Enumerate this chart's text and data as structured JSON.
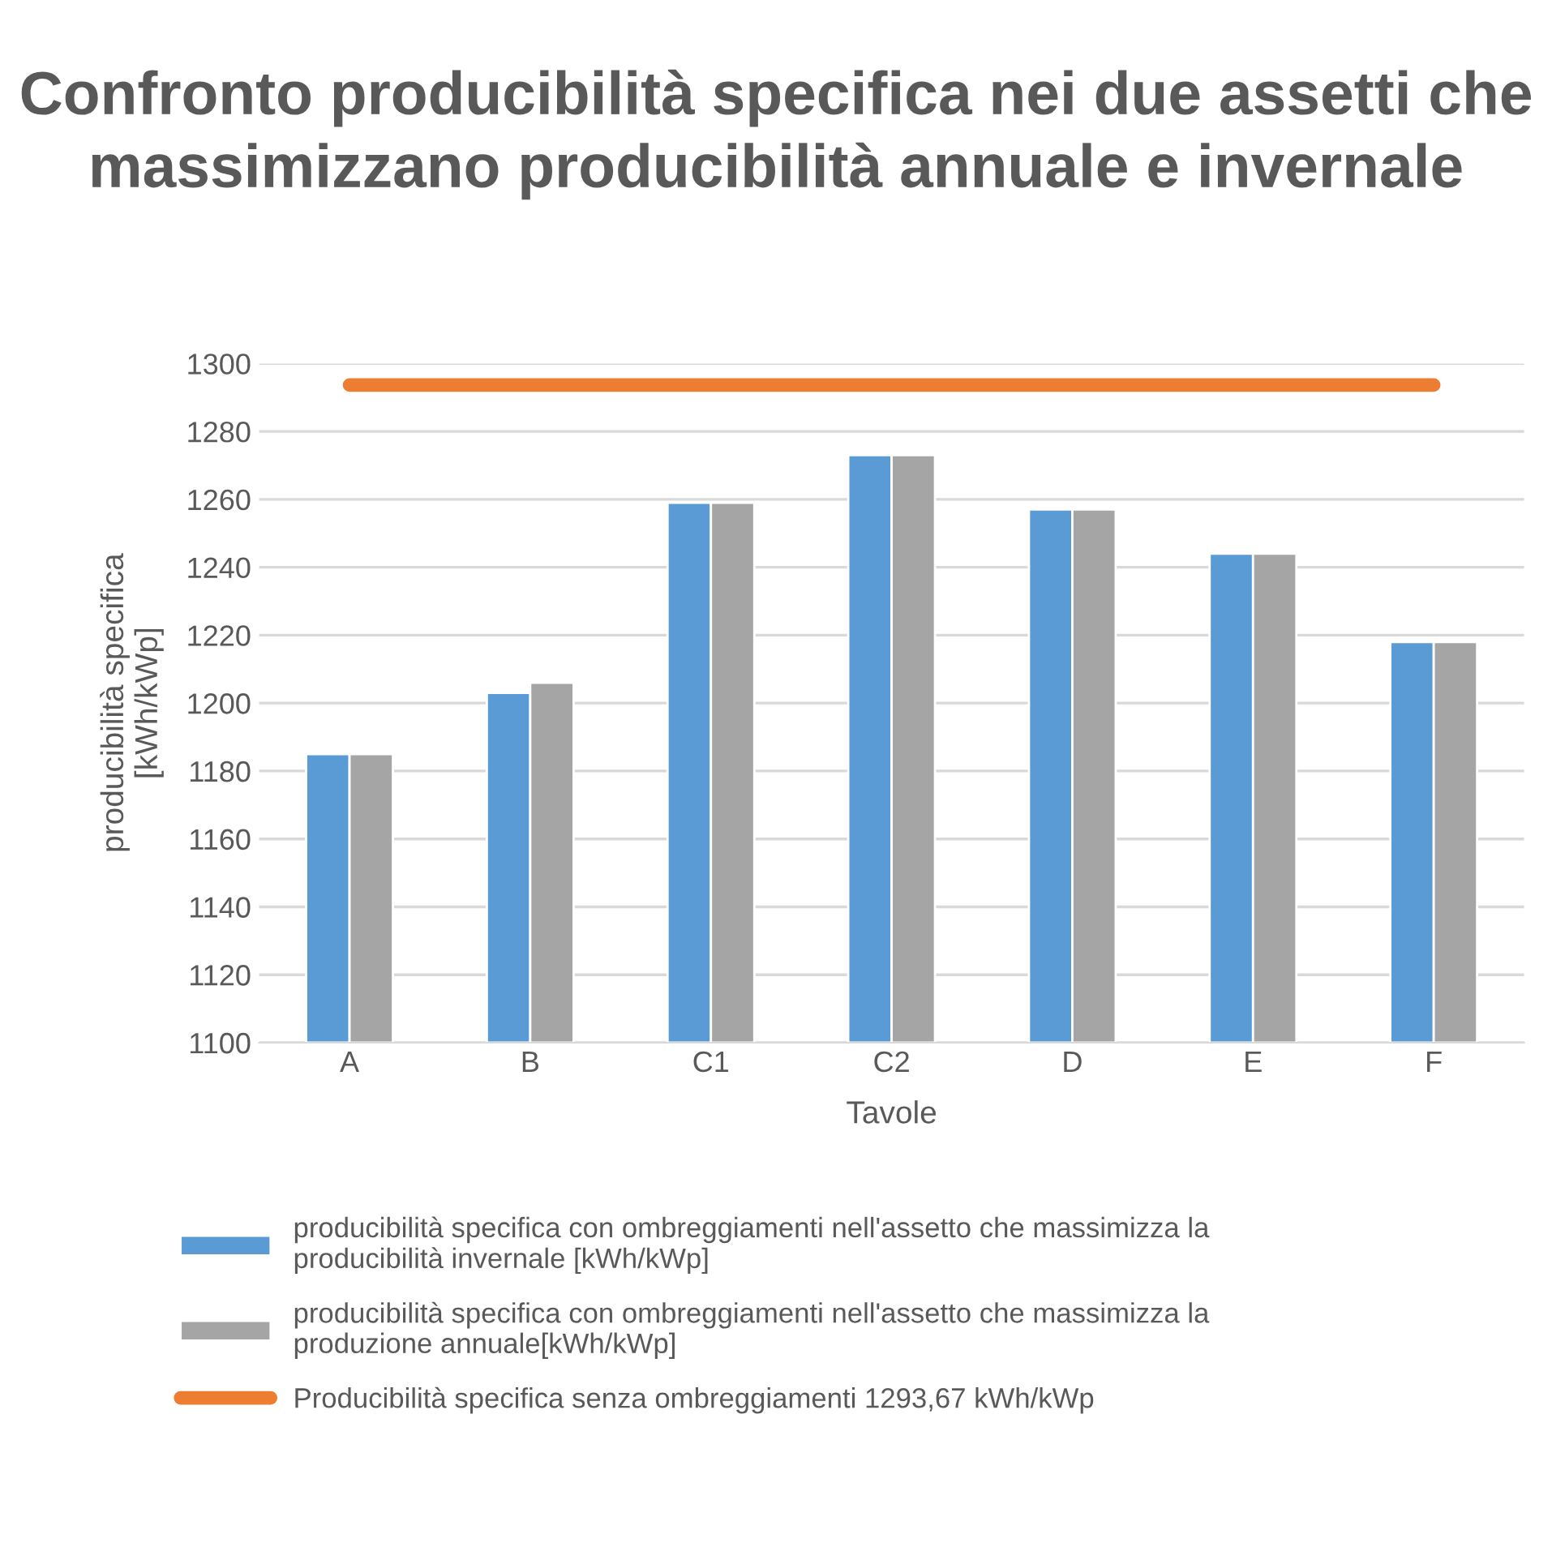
{
  "chart_data": {
    "type": "bar",
    "title": "Confronto producibilità specifica nei due assetti che massimizzano producibilità annuale e invernale",
    "xlabel": "Tavole",
    "ylabel": "producibilità specifica\n[kWh/kWp]",
    "categories": [
      "A",
      "B",
      "C1",
      "C2",
      "D",
      "E",
      "F"
    ],
    "series": [
      {
        "name": "producibilità specifica con ombreggiamenti nell'assetto che massimizza la\nproducibilità invernale [kWh/kWp]",
        "color": "#5b9bd5",
        "values": [
          1185,
          1203,
          1259,
          1273,
          1257,
          1244,
          1218
        ]
      },
      {
        "name": "producibilità specifica con ombreggiamenti nell'assetto che massimizza la\nproduzione annuale[kWh/kWp]",
        "color": "#a5a5a5",
        "values": [
          1185,
          1206,
          1259,
          1273,
          1257,
          1244,
          1218
        ]
      },
      {
        "name": "Producibilità specifica senza ombreggiamenti 1293,67 kWh/kWp",
        "type": "line",
        "color": "#ed7d31",
        "values": [
          1293.67,
          1293.67,
          1293.67,
          1293.67,
          1293.67,
          1293.67,
          1293.67
        ]
      }
    ],
    "ylim": [
      1100,
      1300
    ],
    "yticks": [
      1100,
      1120,
      1140,
      1160,
      1180,
      1200,
      1220,
      1240,
      1260,
      1280,
      1300
    ],
    "grid": "y",
    "legend": "bottom"
  }
}
